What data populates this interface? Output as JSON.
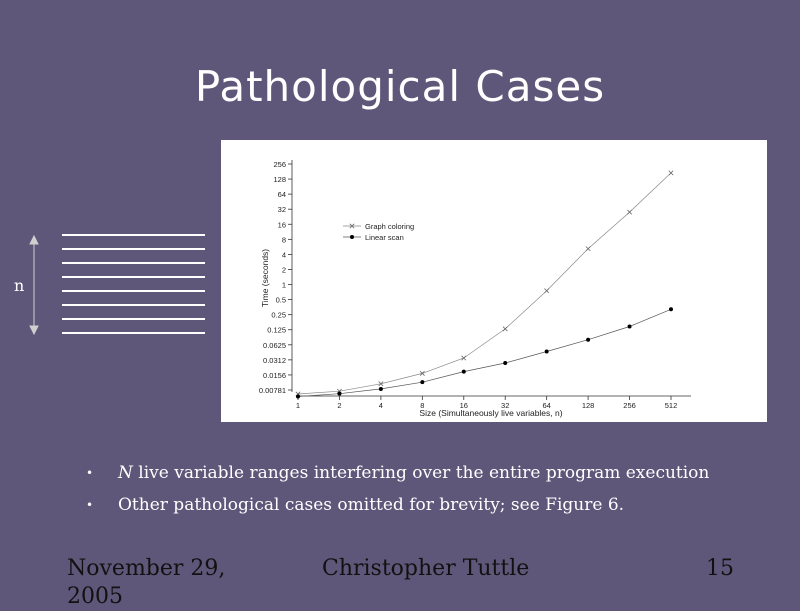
{
  "slide": {
    "title": "Pathological Cases",
    "n_label": "n"
  },
  "bullets": [
    {
      "emph": "N",
      "text": " live variable ranges interfering over the entire program execution"
    },
    {
      "emph": "",
      "text": "Other pathological cases omitted for brevity; see Figure 6."
    }
  ],
  "footer": {
    "date": "November 29, 2005",
    "author": "Christopher Tuttle",
    "page": "15"
  },
  "chart_data": {
    "type": "line",
    "title": "",
    "xlabel": "Size (Simultaneously live variables, n)",
    "ylabel": "Time (seconds)",
    "x_scale": "log2",
    "y_scale": "log2",
    "x": [
      1,
      2,
      4,
      8,
      16,
      32,
      64,
      128,
      256,
      512
    ],
    "x_ticks": [
      "1",
      "2",
      "4",
      "8",
      "16",
      "32",
      "64",
      "128",
      "256",
      "512"
    ],
    "y_ticks": [
      "0.00781",
      "0.0156",
      "0.0312",
      "0.0625",
      "0.125",
      "0.25",
      "0.5",
      "1",
      "2",
      "4",
      "8",
      "16",
      "32",
      "64",
      "128",
      "256"
    ],
    "y_tick_values": [
      0.0078125,
      0.015625,
      0.03125,
      0.0625,
      0.125,
      0.25,
      0.5,
      1,
      2,
      4,
      8,
      16,
      32,
      64,
      128,
      256
    ],
    "xlim": [
      1,
      512
    ],
    "ylim": [
      0.0078125,
      256
    ],
    "grid": false,
    "legend_position": "top-left",
    "series": [
      {
        "name": "Graph coloring",
        "marker": "x",
        "values": [
          0.0065,
          0.0074,
          0.0104,
          0.0168,
          0.034,
          0.13,
          0.75,
          5.2,
          28,
          170
        ]
      },
      {
        "name": "Linear scan",
        "marker": "dot",
        "values": [
          0.0058,
          0.0066,
          0.0082,
          0.0112,
          0.0182,
          0.027,
          0.046,
          0.079,
          0.145,
          0.32
        ]
      }
    ]
  }
}
